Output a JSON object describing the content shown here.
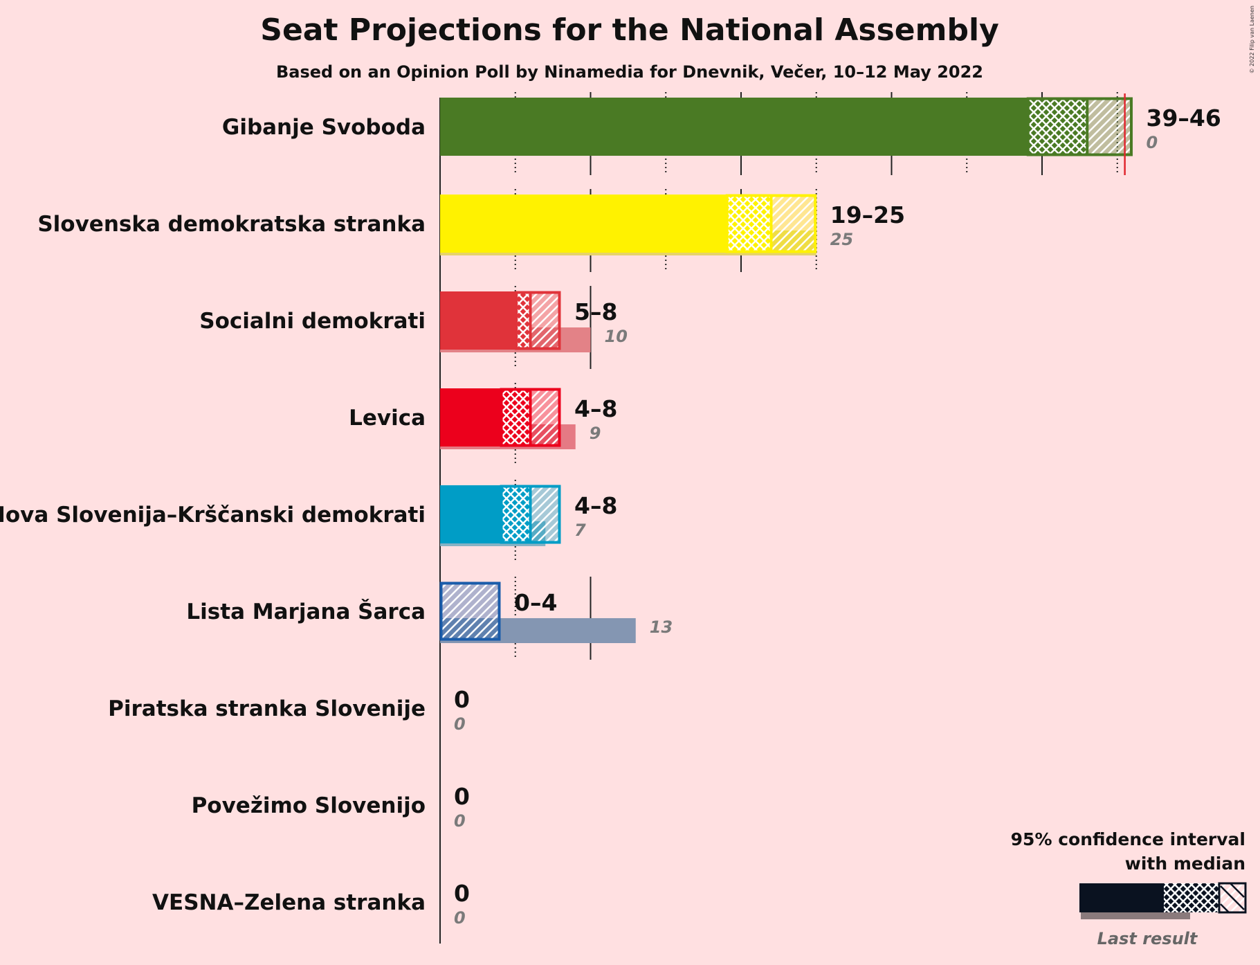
{
  "chart_data": {
    "type": "bar",
    "orientation": "horizontal",
    "title": "Seat Projections for the National Assembly",
    "subtitle": "Based on an Opinion Poll by Ninamedia for Dnevnik, Večer, 10–12 May 2022",
    "copyright": "© 2022 Filip van Laenen",
    "xlim": [
      0,
      46
    ],
    "majority_line": 45.5,
    "grid": "vertical lines every 5 seats, dotted at odd multiples",
    "legend": {
      "title_line1": "95% confidence interval",
      "title_line2": "with median",
      "last_result_label": "Last result",
      "placement": "bottom-right"
    },
    "parties": [
      {
        "name": "Gibanje Svoboda",
        "low": 39,
        "median": 43,
        "high": 46,
        "range_label": "39–46",
        "last": 0,
        "last_label": "0",
        "color": "#4A7A24",
        "last_color": "#4A7A24"
      },
      {
        "name": "Slovenska demokratska stranka",
        "low": 19,
        "median": 22,
        "high": 25,
        "range_label": "19–25",
        "last": 25,
        "last_label": "25",
        "color": "#FFF200",
        "last_color": "#E6D36A"
      },
      {
        "name": "Socialni demokrati",
        "low": 5,
        "median": 6,
        "high": 8,
        "range_label": "5–8",
        "last": 10,
        "last_label": "10",
        "color": "#E0333A",
        "last_color": "#E38287"
      },
      {
        "name": "Levica",
        "low": 4,
        "median": 6,
        "high": 8,
        "range_label": "4–8",
        "last": 9,
        "last_label": "9",
        "color": "#EC001C",
        "last_color": "#E57A84"
      },
      {
        "name": "Nova Slovenija–Krščanski demokrati",
        "low": 4,
        "median": 6,
        "high": 8,
        "range_label": "4–8",
        "last": 7,
        "last_label": "7",
        "color": "#009DC6",
        "last_color": "#86B2C4"
      },
      {
        "name": "Lista Marjana Šarca",
        "low": 0,
        "median": 0,
        "high": 4,
        "range_label": "0–4",
        "last": 13,
        "last_label": "13",
        "color": "#1A5CAA",
        "last_color": "#8496B2"
      },
      {
        "name": "Piratska stranka Slovenije",
        "low": 0,
        "median": 0,
        "high": 0,
        "range_label": "0",
        "last": 0,
        "last_label": "0",
        "color": "#222222",
        "last_color": "#999999"
      },
      {
        "name": "Povežimo Slovenijo",
        "low": 0,
        "median": 0,
        "high": 0,
        "range_label": "0",
        "last": 0,
        "last_label": "0",
        "color": "#222222",
        "last_color": "#999999"
      },
      {
        "name": "VESNA–Zelena stranka",
        "low": 0,
        "median": 0,
        "high": 0,
        "range_label": "0",
        "last": 0,
        "last_label": "0",
        "color": "#222222",
        "last_color": "#999999"
      }
    ]
  }
}
